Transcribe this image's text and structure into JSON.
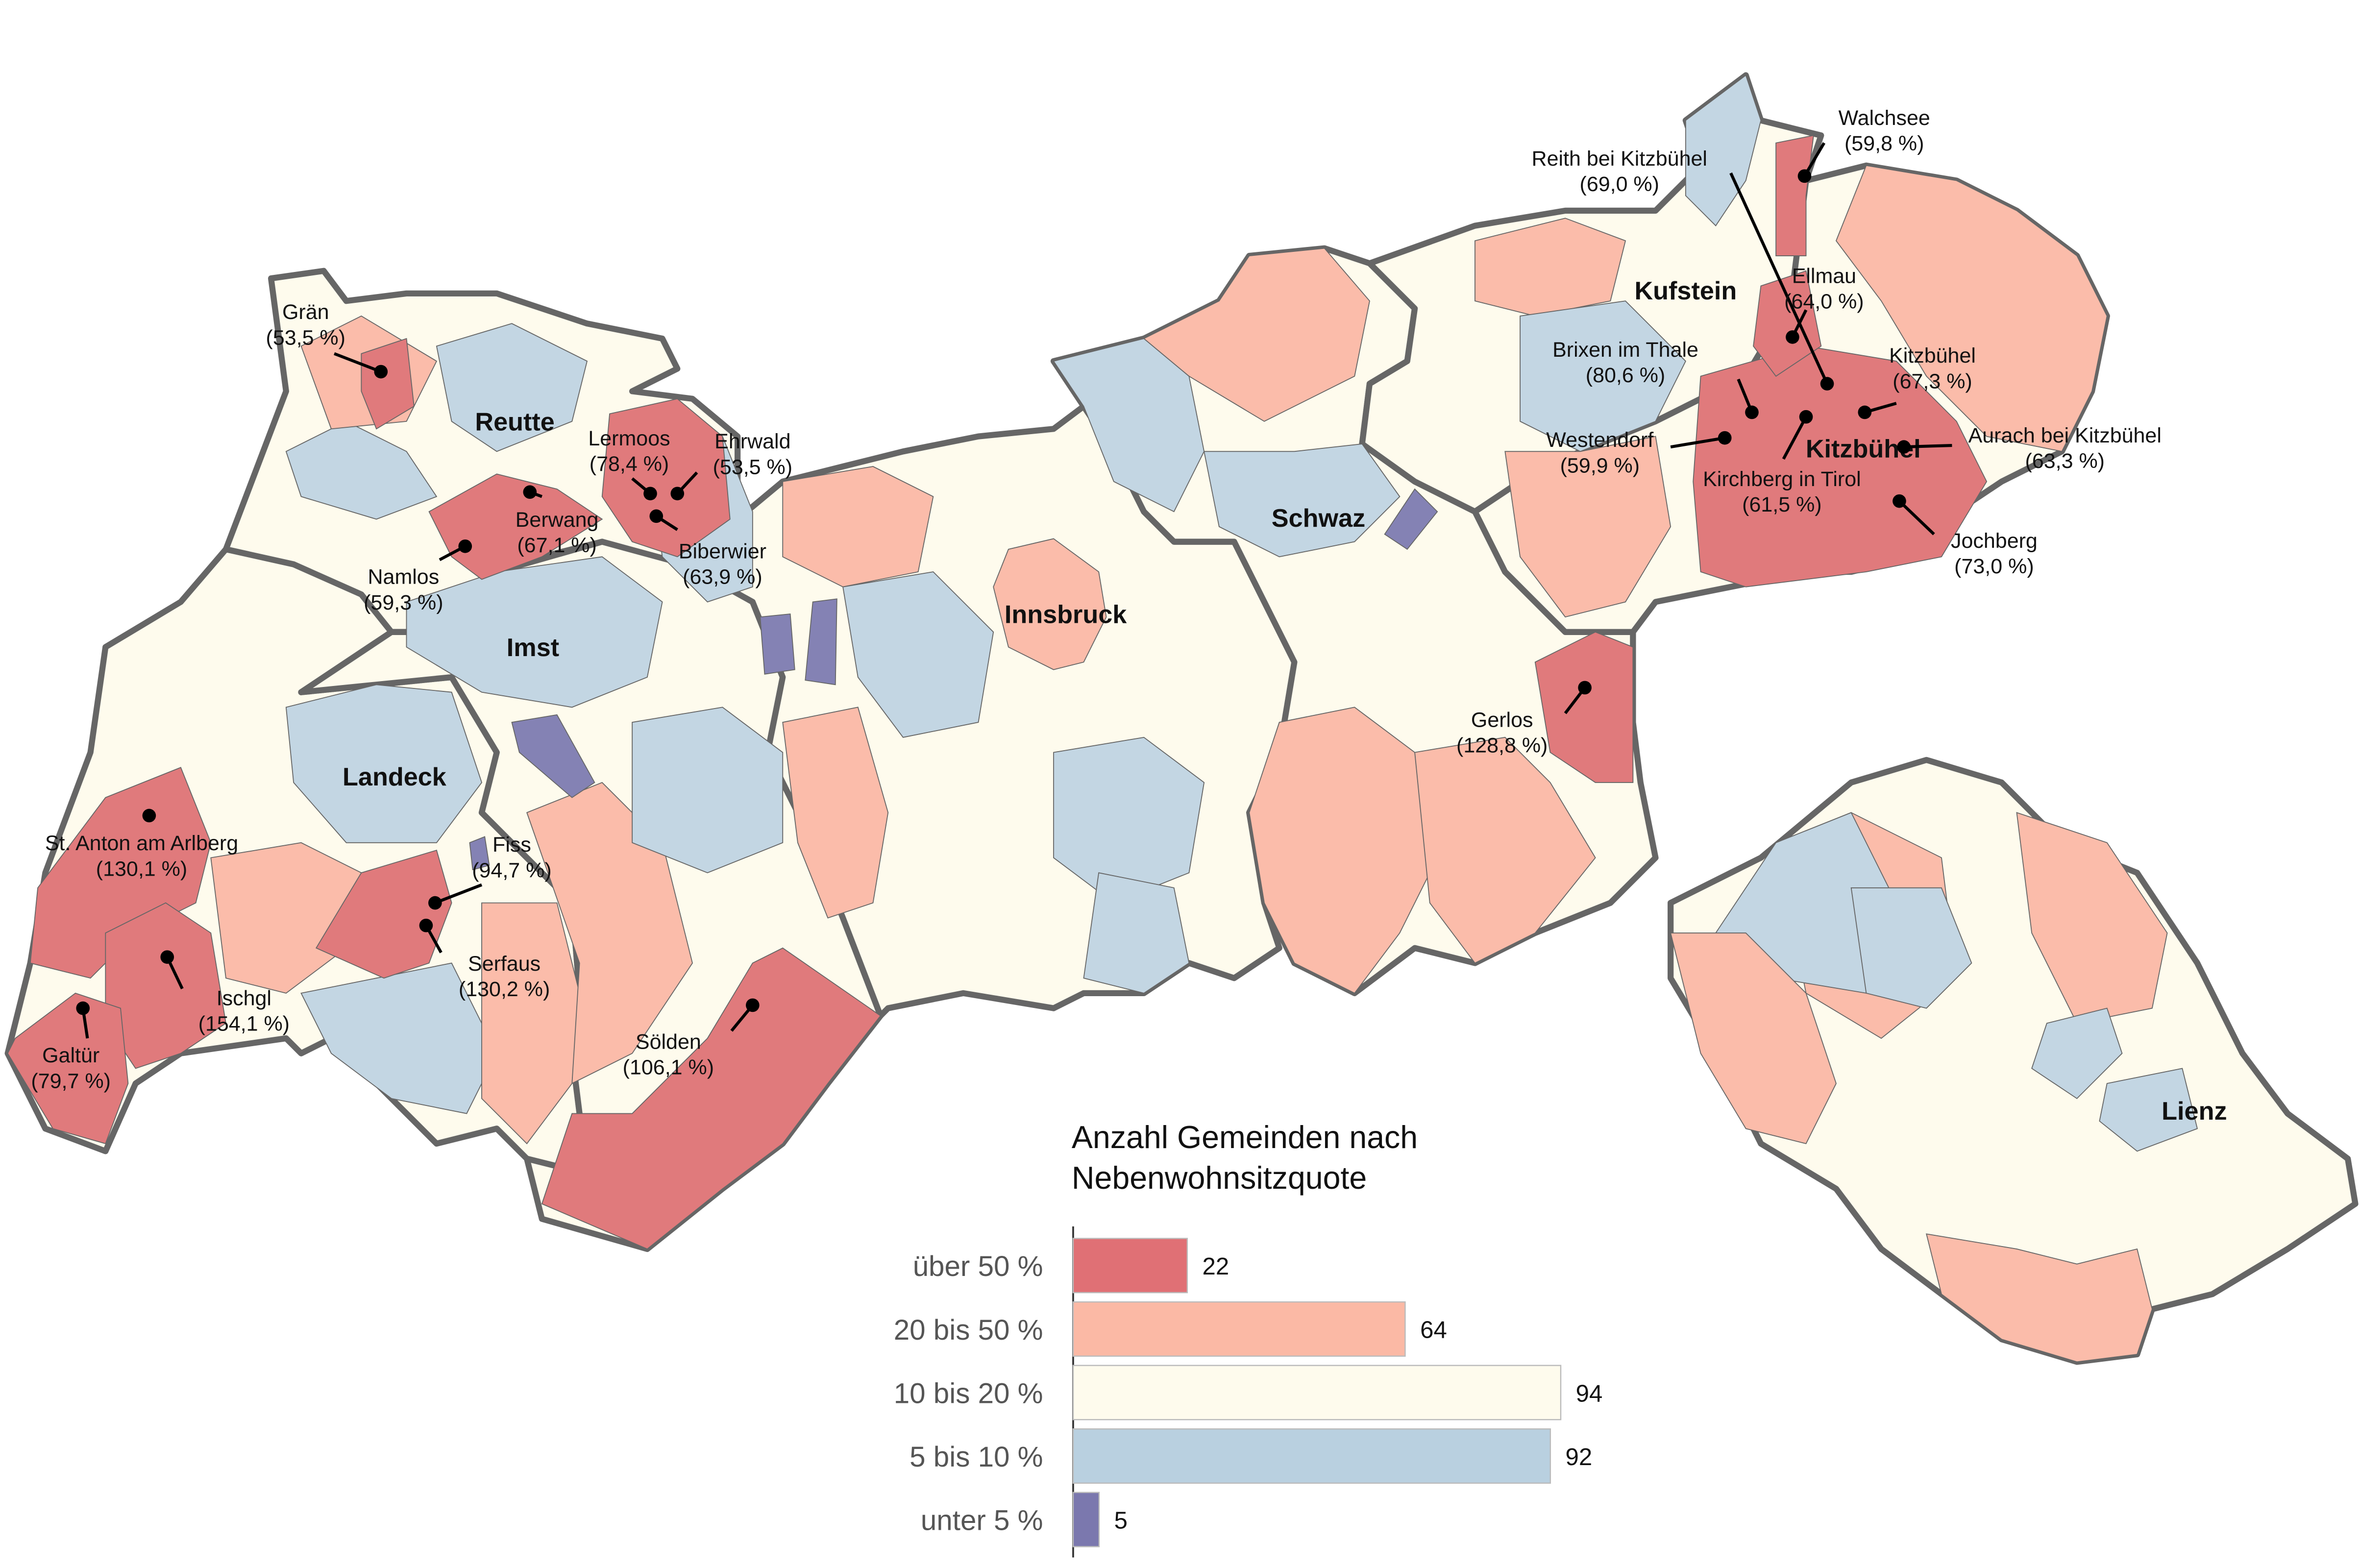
{
  "map": {
    "districts": [
      {
        "name": "Reutte"
      },
      {
        "name": "Imst"
      },
      {
        "name": "Landeck"
      },
      {
        "name": "Innsbruck"
      },
      {
        "name": "Schwaz"
      },
      {
        "name": "Kufstein"
      },
      {
        "name": "Kitzbühel"
      },
      {
        "name": "Lienz"
      }
    ],
    "callouts": [
      {
        "name": "Grän",
        "value_label": "(53,5 %)"
      },
      {
        "name": "Lermoos",
        "value_label": "(78,4 %)"
      },
      {
        "name": "Ehrwald",
        "value_label": "(53,5 %)"
      },
      {
        "name": "Berwang",
        "value_label": "(67,1 %)"
      },
      {
        "name": "Biberwier",
        "value_label": "(63,9 %)"
      },
      {
        "name": "Namlos",
        "value_label": "(59,3 %)"
      },
      {
        "name": "St. Anton am Arlberg",
        "value_label": "(130,1 %)"
      },
      {
        "name": "Fiss",
        "value_label": "(94,7 %)"
      },
      {
        "name": "Serfaus",
        "value_label": "(130,2 %)"
      },
      {
        "name": "Ischgl",
        "value_label": "(154,1 %)"
      },
      {
        "name": "Galtür",
        "value_label": "(79,7 %)"
      },
      {
        "name": "Sölden",
        "value_label": "(106,1 %)"
      },
      {
        "name": "Gerlos",
        "value_label": "(128,8 %)"
      },
      {
        "name": "Walchsee",
        "value_label": "(59,8 %)"
      },
      {
        "name": "Reith bei Kitzbühel",
        "value_label": "(69,0 %)"
      },
      {
        "name": "Ellmau",
        "value_label": "(64,0 %)"
      },
      {
        "name": "Brixen im Thale",
        "value_label": "(80,6 %)"
      },
      {
        "name": "Kitzbühel",
        "value_label": "(67,3 %)"
      },
      {
        "name": "Westendorf",
        "value_label": "(59,9 %)"
      },
      {
        "name": "Aurach bei Kitzbühel",
        "value_label": "(63,3 %)"
      },
      {
        "name": "Kirchberg in Tirol",
        "value_label": "(61,5 %)"
      },
      {
        "name": "Jochberg",
        "value_label": "(73,0 %)"
      }
    ]
  },
  "chart_data": {
    "type": "bar",
    "orientation": "horizontal",
    "title": "Anzahl Gemeinden nach Nebenwohnsitzquote",
    "categories": [
      "über 50 %",
      "20 bis 50 %",
      "10 bis 20 %",
      "5 bis 10 %",
      "unter 5 %"
    ],
    "values": [
      22,
      64,
      94,
      92,
      5
    ],
    "colors": [
      "#e07075",
      "#fbb9a5",
      "#fefbed",
      "#b9d0e0",
      "#7b78ae"
    ]
  }
}
